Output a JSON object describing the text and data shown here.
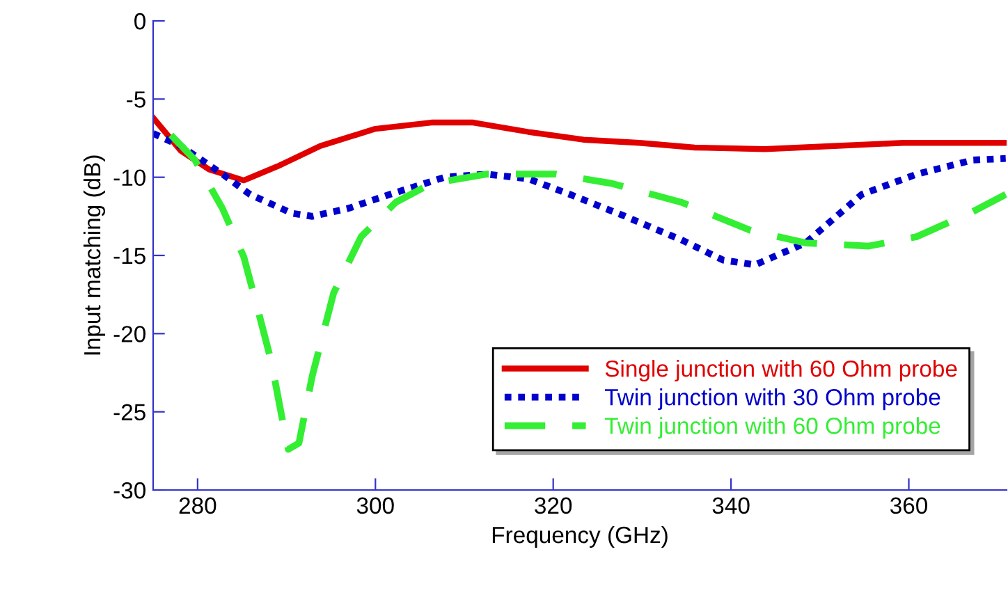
{
  "chart_data": {
    "type": "line",
    "xlabel": "Frequency (GHz)",
    "ylabel": "Input matching (dB)",
    "xlim": [
      275,
      371
    ],
    "ylim": [
      -30,
      0
    ],
    "xticks": [
      280,
      300,
      320,
      340,
      360
    ],
    "yticks": [
      -30,
      -25,
      -20,
      -15,
      -10,
      -5,
      0
    ],
    "grid": false,
    "legend": "bottom right",
    "marker": "none",
    "series": [
      {
        "name": "Single junction with 60 Ohm probe",
        "color": "#e00000",
        "line_style": "solid",
        "x": [
          275,
          278.1,
          281.3,
          285.2,
          289,
          293.8,
          300,
          306.3,
          311,
          317.2,
          323.4,
          329.7,
          335.9,
          343.8,
          351.6,
          359.4,
          370.9
        ],
        "values": [
          -6.2,
          -8.3,
          -9.5,
          -10.2,
          -9.3,
          -8.0,
          -6.9,
          -6.5,
          -6.5,
          -7.1,
          -7.6,
          -7.8,
          -8.1,
          -8.2,
          -8.0,
          -7.8,
          -7.8
        ]
      },
      {
        "name": "Twin junction with 30 Ohm probe",
        "color": "#0000cc",
        "line_style": "dotted",
        "x": [
          275,
          278.1,
          282.8,
          285.9,
          290.6,
          292.9,
          296.9,
          301.6,
          307.8,
          312.5,
          317.2,
          321.9,
          328.1,
          334.4,
          339.1,
          342.7,
          348.4,
          354.7,
          360.9,
          367.2,
          370.9
        ],
        "values": [
          -7.2,
          -8.0,
          -9.8,
          -11.1,
          -12.3,
          -12.5,
          -12.0,
          -11.1,
          -10.0,
          -9.8,
          -10.1,
          -11.1,
          -12.5,
          -14.0,
          -15.3,
          -15.6,
          -14.2,
          -11.1,
          -9.8,
          -8.9,
          -8.8
        ]
      },
      {
        "name": "Twin junction with 60 Ohm probe",
        "color": "#33ee33",
        "line_style": "dashed",
        "x": [
          277,
          279.7,
          282.8,
          285.2,
          286.7,
          288.3,
          289.5,
          290.2,
          291.4,
          292.9,
          295.3,
          298.4,
          302.3,
          306.3,
          312.5,
          320.3,
          326.6,
          334.4,
          342.2,
          348.4,
          355.5,
          360.9,
          367.2,
          370.9
        ],
        "values": [
          -7.3,
          -8.9,
          -12.0,
          -15.1,
          -18.3,
          -21.8,
          -25.4,
          -27.4,
          -27.0,
          -22.7,
          -17.4,
          -13.8,
          -11.6,
          -10.4,
          -9.8,
          -9.8,
          -10.4,
          -11.6,
          -13.4,
          -14.2,
          -14.4,
          -13.8,
          -12.2,
          -11.1
        ]
      }
    ]
  }
}
